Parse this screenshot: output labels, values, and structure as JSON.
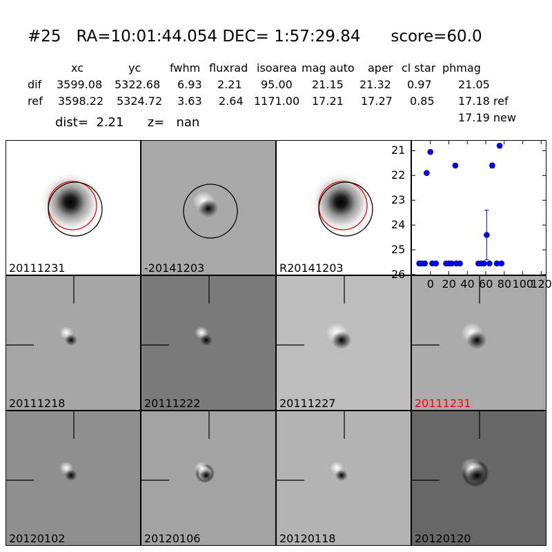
{
  "header": {
    "title": "#25   RA=10:01:44.054 DEC= 1:57:29.84      score=60.0",
    "columns": [
      "xc",
      "yc",
      "fwhm",
      "fluxrad",
      "isoarea",
      "mag auto",
      "aper",
      "cl star",
      "phmag"
    ],
    "rows": [
      {
        "label": "dif",
        "values": [
          "3599.08",
          "5322.68",
          "6.93",
          "2.21",
          "95.00",
          "21.15",
          "21.32",
          "0.97",
          "21.05"
        ]
      },
      {
        "label": "ref",
        "values": [
          "3598.22",
          "5324.72",
          "3.63",
          "2.64",
          "1171.00",
          "17.21",
          "17.27",
          "0.85",
          "17.18 ref"
        ]
      }
    ],
    "extra_phmag": "17.19 new",
    "dist_line": "dist=  2.21      z=   nan"
  },
  "stamps": [
    {
      "label": "20111231",
      "kind": "ref",
      "label_color": "#000000"
    },
    {
      "label": "-20141203",
      "kind": "diff-circle",
      "label_color": "#000000"
    },
    {
      "label": "R20141203",
      "kind": "ref",
      "label_color": "#000000"
    },
    {
      "label": "20111218",
      "kind": "dipole",
      "bg": "#a6a6a6",
      "label_color": "#000000"
    },
    {
      "label": "20111222",
      "kind": "dipole",
      "bg": "#7a7a7a",
      "label_color": "#000000"
    },
    {
      "label": "20111227",
      "kind": "dipole-big",
      "bg": "#bdbdbd",
      "label_color": "#000000"
    },
    {
      "label": "20111231",
      "kind": "dipole-big",
      "bg": "#ababab",
      "label_color": "#ff0000"
    },
    {
      "label": "20120102",
      "kind": "dipole",
      "bg": "#8f8f8f",
      "label_color": "#000000"
    },
    {
      "label": "20120106",
      "kind": "dipole-ring",
      "bg": "#a3a3a3",
      "label_color": "#000000"
    },
    {
      "label": "20120118",
      "kind": "dipole",
      "bg": "#b3b3b3",
      "label_color": "#000000"
    },
    {
      "label": "20120120",
      "kind": "dipole-dark",
      "bg": "#676767",
      "label_color": "#000000"
    }
  ],
  "chart_data": {
    "type": "scatter",
    "xlim": [
      -20,
      125
    ],
    "ylim": [
      26,
      20.6
    ],
    "xticks": [
      0,
      20,
      40,
      60,
      80,
      100,
      120
    ],
    "xtick_labels": [
      "0",
      "20",
      "40",
      "60",
      "80",
      "100",
      "120"
    ],
    "yticks": [
      21,
      22,
      23,
      24,
      25,
      26
    ],
    "ytick_labels": [
      "21",
      "22",
      "23",
      "24",
      "25",
      "26"
    ],
    "marker_color": "#0000ff",
    "points": [
      {
        "x": -12,
        "y": 25.55
      },
      {
        "x": -9,
        "y": 25.55
      },
      {
        "x": -6,
        "y": 25.55
      },
      {
        "x": -4,
        "y": 21.9
      },
      {
        "x": 0,
        "y": 21.05
      },
      {
        "x": 2,
        "y": 25.55
      },
      {
        "x": 6,
        "y": 25.55
      },
      {
        "x": 17,
        "y": 25.55
      },
      {
        "x": 20,
        "y": 25.55
      },
      {
        "x": 23,
        "y": 25.55
      },
      {
        "x": 27,
        "y": 21.6
      },
      {
        "x": 28,
        "y": 25.55
      },
      {
        "x": 32,
        "y": 25.55
      },
      {
        "x": 52,
        "y": 25.55
      },
      {
        "x": 55,
        "y": 25.55
      },
      {
        "x": 58,
        "y": 25.55
      },
      {
        "x": 61,
        "y": 24.4,
        "err": 1.0
      },
      {
        "x": 64,
        "y": 25.55
      },
      {
        "x": 67,
        "y": 21.6,
        "err": 0.1
      },
      {
        "x": 72,
        "y": 25.55
      },
      {
        "x": 75,
        "y": 20.8
      },
      {
        "x": 77,
        "y": 25.55
      }
    ]
  }
}
